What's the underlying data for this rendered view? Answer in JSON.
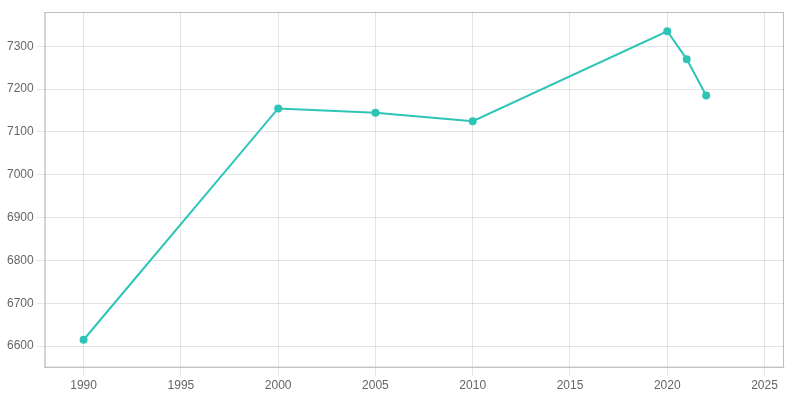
{
  "chart_data": {
    "type": "line",
    "x": [
      1990,
      2000,
      2005,
      2010,
      2020,
      2021,
      2022
    ],
    "values": [
      6615,
      7155,
      7145,
      7125,
      7335,
      7270,
      7185
    ],
    "color": "#2ec4b6",
    "marker": "circle",
    "xlim": [
      1988,
      2026
    ],
    "ylim": [
      6550,
      7380
    ],
    "xticks": [
      1990,
      1995,
      2000,
      2005,
      2010,
      2015,
      2020,
      2025
    ],
    "yticks": [
      6600,
      6700,
      6800,
      6900,
      7000,
      7100,
      7200,
      7300
    ],
    "grid": true
  }
}
